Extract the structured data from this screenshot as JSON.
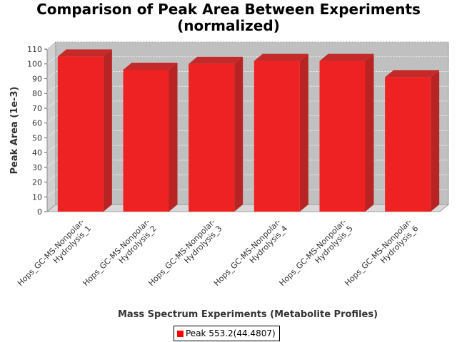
{
  "chart_data": {
    "type": "bar",
    "title_lines": [
      "Comparison of Peak Area Between Experiments",
      "(normalized)"
    ],
    "xlabel": "Mass Spectrum Experiments (Metabolite Profiles)",
    "ylabel": "Peak Area (1e-3)",
    "ylim": [
      0,
      110
    ],
    "yticks": [
      0,
      10,
      20,
      30,
      40,
      50,
      60,
      70,
      80,
      90,
      100,
      110
    ],
    "grid": true,
    "legend_position": "bottom",
    "categories": [
      [
        "Hops_GC-MS-Nonpolar-",
        "Hydrolysis_1"
      ],
      [
        "Hops_GC-MS-Nonpolar-",
        "Hydrolysis_2"
      ],
      [
        "Hops_GC-MS-Nonpolar-",
        "Hydrolysis_3"
      ],
      [
        "Hops_GC-MS-Nonpolar-",
        "Hydrolysis_4"
      ],
      [
        "Hops_GC-MS-Nonpolar-",
        "Hydrolysis_5"
      ],
      [
        "Hops_GC-MS-Nonpolar-",
        "Hydrolysis_6"
      ]
    ],
    "series": [
      {
        "name": "Peak 553.2(44.4807)",
        "color": "#ee2222",
        "values": [
          105,
          96,
          100,
          102,
          102,
          91
        ]
      }
    ]
  }
}
